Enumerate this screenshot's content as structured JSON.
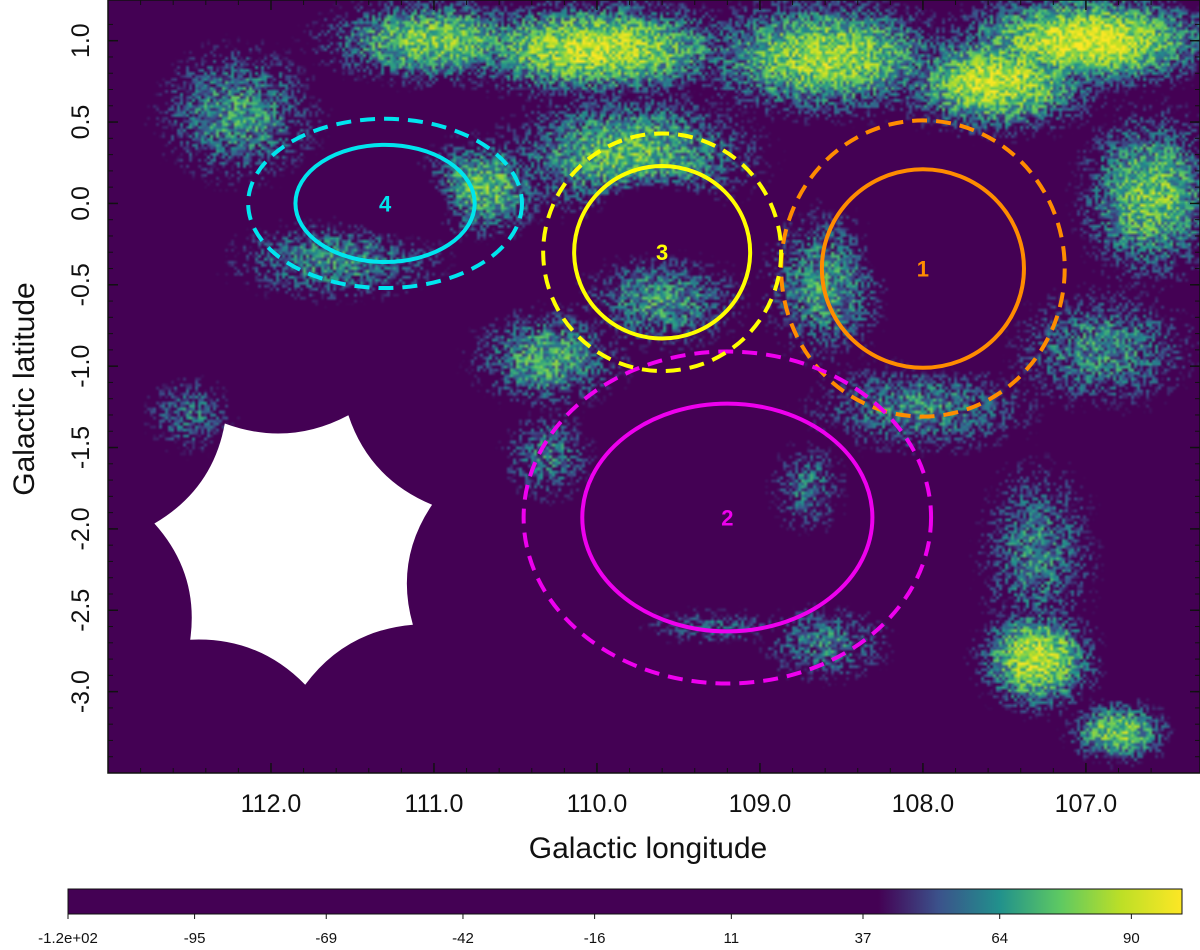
{
  "chart_data": {
    "type": "heatmap",
    "xlabel": "Galactic longitude",
    "ylabel": "Galactic latitude",
    "xlim": [
      113.0,
      106.3
    ],
    "ylim": [
      -3.5,
      1.25
    ],
    "x_reversed": true,
    "x_ticks": [
      112.0,
      111.0,
      110.0,
      109.0,
      108.0,
      107.0
    ],
    "x_tick_labels": [
      "112.0",
      "111.0",
      "110.0",
      "109.0",
      "108.0",
      "107.0"
    ],
    "y_ticks": [
      1.0,
      0.5,
      0.0,
      -0.5,
      -1.0,
      -1.5,
      -2.0,
      -2.5,
      -3.0
    ],
    "y_tick_labels": [
      "1.0",
      "0.5",
      "0.0",
      "-0.5",
      "-1.0",
      "-1.5",
      "-2.0",
      "-2.5",
      "-3.0"
    ],
    "colormap": [
      "#440154",
      "#3b528b",
      "#21918c",
      "#5ec962",
      "#bddf26",
      "#fde725"
    ],
    "background_color": "#440154",
    "colorbar": {
      "range": [
        -120,
        100
      ],
      "visible_color_start": 40,
      "tick_values": [
        -120,
        -95,
        -69,
        -42,
        -16,
        11,
        37,
        64,
        90
      ],
      "tick_labels": [
        "-1.2e+02",
        "-95",
        "-69",
        "-42",
        "-16",
        "11",
        "37",
        "64",
        "90"
      ]
    },
    "masked_region": {
      "shape": "scalloped-heptagon",
      "center": [
        111.85,
        -2.1
      ],
      "radius": 0.86,
      "color": "#ffffff"
    },
    "regions": [
      {
        "label": "1",
        "color": "#ff8c00",
        "center": [
          108.0,
          -0.4
        ],
        "inner_radii": [
          0.62,
          0.61
        ],
        "outer_radii": [
          0.87,
          0.91
        ]
      },
      {
        "label": "2",
        "color": "#ee00ee",
        "center": [
          109.2,
          -1.93
        ],
        "inner_radii": [
          0.89,
          0.7
        ],
        "outer_radii": [
          1.25,
          1.02
        ]
      },
      {
        "label": "3",
        "color": "#ffff00",
        "center": [
          109.6,
          -0.3
        ],
        "inner_radii": [
          0.54,
          0.53
        ],
        "outer_radii": [
          0.73,
          0.73
        ]
      },
      {
        "label": "4",
        "color": "#00e5ee",
        "center": [
          111.3,
          0.0
        ],
        "inner_radii": [
          0.55,
          0.36
        ],
        "outer_radii": [
          0.84,
          0.52
        ]
      }
    ],
    "intensity_features": [
      {
        "x": 107.0,
        "y": 1.0,
        "value": 95,
        "sx": 0.9,
        "sy": 0.32
      },
      {
        "x": 107.55,
        "y": 0.75,
        "value": 90,
        "sx": 0.7,
        "sy": 0.35
      },
      {
        "x": 108.6,
        "y": 0.9,
        "value": 85,
        "sx": 0.9,
        "sy": 0.4
      },
      {
        "x": 110.0,
        "y": 0.95,
        "value": 90,
        "sx": 1.0,
        "sy": 0.33
      },
      {
        "x": 111.0,
        "y": 1.0,
        "value": 80,
        "sx": 0.8,
        "sy": 0.3
      },
      {
        "x": 109.8,
        "y": 0.3,
        "value": 75,
        "sx": 0.9,
        "sy": 0.45
      },
      {
        "x": 110.7,
        "y": 0.1,
        "value": 75,
        "sx": 0.45,
        "sy": 0.35
      },
      {
        "x": 112.2,
        "y": 0.55,
        "value": 65,
        "sx": 0.6,
        "sy": 0.5
      },
      {
        "x": 111.6,
        "y": -0.35,
        "value": 62,
        "sx": 0.8,
        "sy": 0.3
      },
      {
        "x": 110.3,
        "y": -0.95,
        "value": 70,
        "sx": 0.55,
        "sy": 0.35
      },
      {
        "x": 109.6,
        "y": -0.6,
        "value": 65,
        "sx": 0.6,
        "sy": 0.35
      },
      {
        "x": 108.6,
        "y": -0.5,
        "value": 66,
        "sx": 0.45,
        "sy": 0.55
      },
      {
        "x": 108.0,
        "y": -1.25,
        "value": 62,
        "sx": 0.85,
        "sy": 0.35
      },
      {
        "x": 106.6,
        "y": 0.05,
        "value": 78,
        "sx": 0.5,
        "sy": 0.6
      },
      {
        "x": 106.9,
        "y": -0.9,
        "value": 62,
        "sx": 0.7,
        "sy": 0.45
      },
      {
        "x": 107.3,
        "y": -2.15,
        "value": 60,
        "sx": 0.45,
        "sy": 0.7
      },
      {
        "x": 107.3,
        "y": -2.8,
        "value": 90,
        "sx": 0.4,
        "sy": 0.35
      },
      {
        "x": 106.8,
        "y": -3.25,
        "value": 80,
        "sx": 0.35,
        "sy": 0.22
      },
      {
        "x": 108.6,
        "y": -2.7,
        "value": 58,
        "sx": 0.5,
        "sy": 0.3
      },
      {
        "x": 110.3,
        "y": -1.55,
        "value": 58,
        "sx": 0.35,
        "sy": 0.35
      },
      {
        "x": 108.7,
        "y": -1.75,
        "value": 56,
        "sx": 0.3,
        "sy": 0.35
      },
      {
        "x": 112.5,
        "y": -1.3,
        "value": 55,
        "sx": 0.35,
        "sy": 0.3
      },
      {
        "x": 109.3,
        "y": -2.6,
        "value": 52,
        "sx": 0.55,
        "sy": 0.15
      }
    ],
    "cavities": [
      {
        "x": 107.9,
        "y": -0.25,
        "sx": 0.28,
        "sy": 0.17
      },
      {
        "x": 107.85,
        "y": -0.8,
        "sx": 0.2,
        "sy": 0.17
      },
      {
        "x": 109.65,
        "y": -0.05,
        "sx": 0.25,
        "sy": 0.14
      },
      {
        "x": 111.2,
        "y": 0.0,
        "sx": 0.22,
        "sy": 0.12
      }
    ]
  }
}
